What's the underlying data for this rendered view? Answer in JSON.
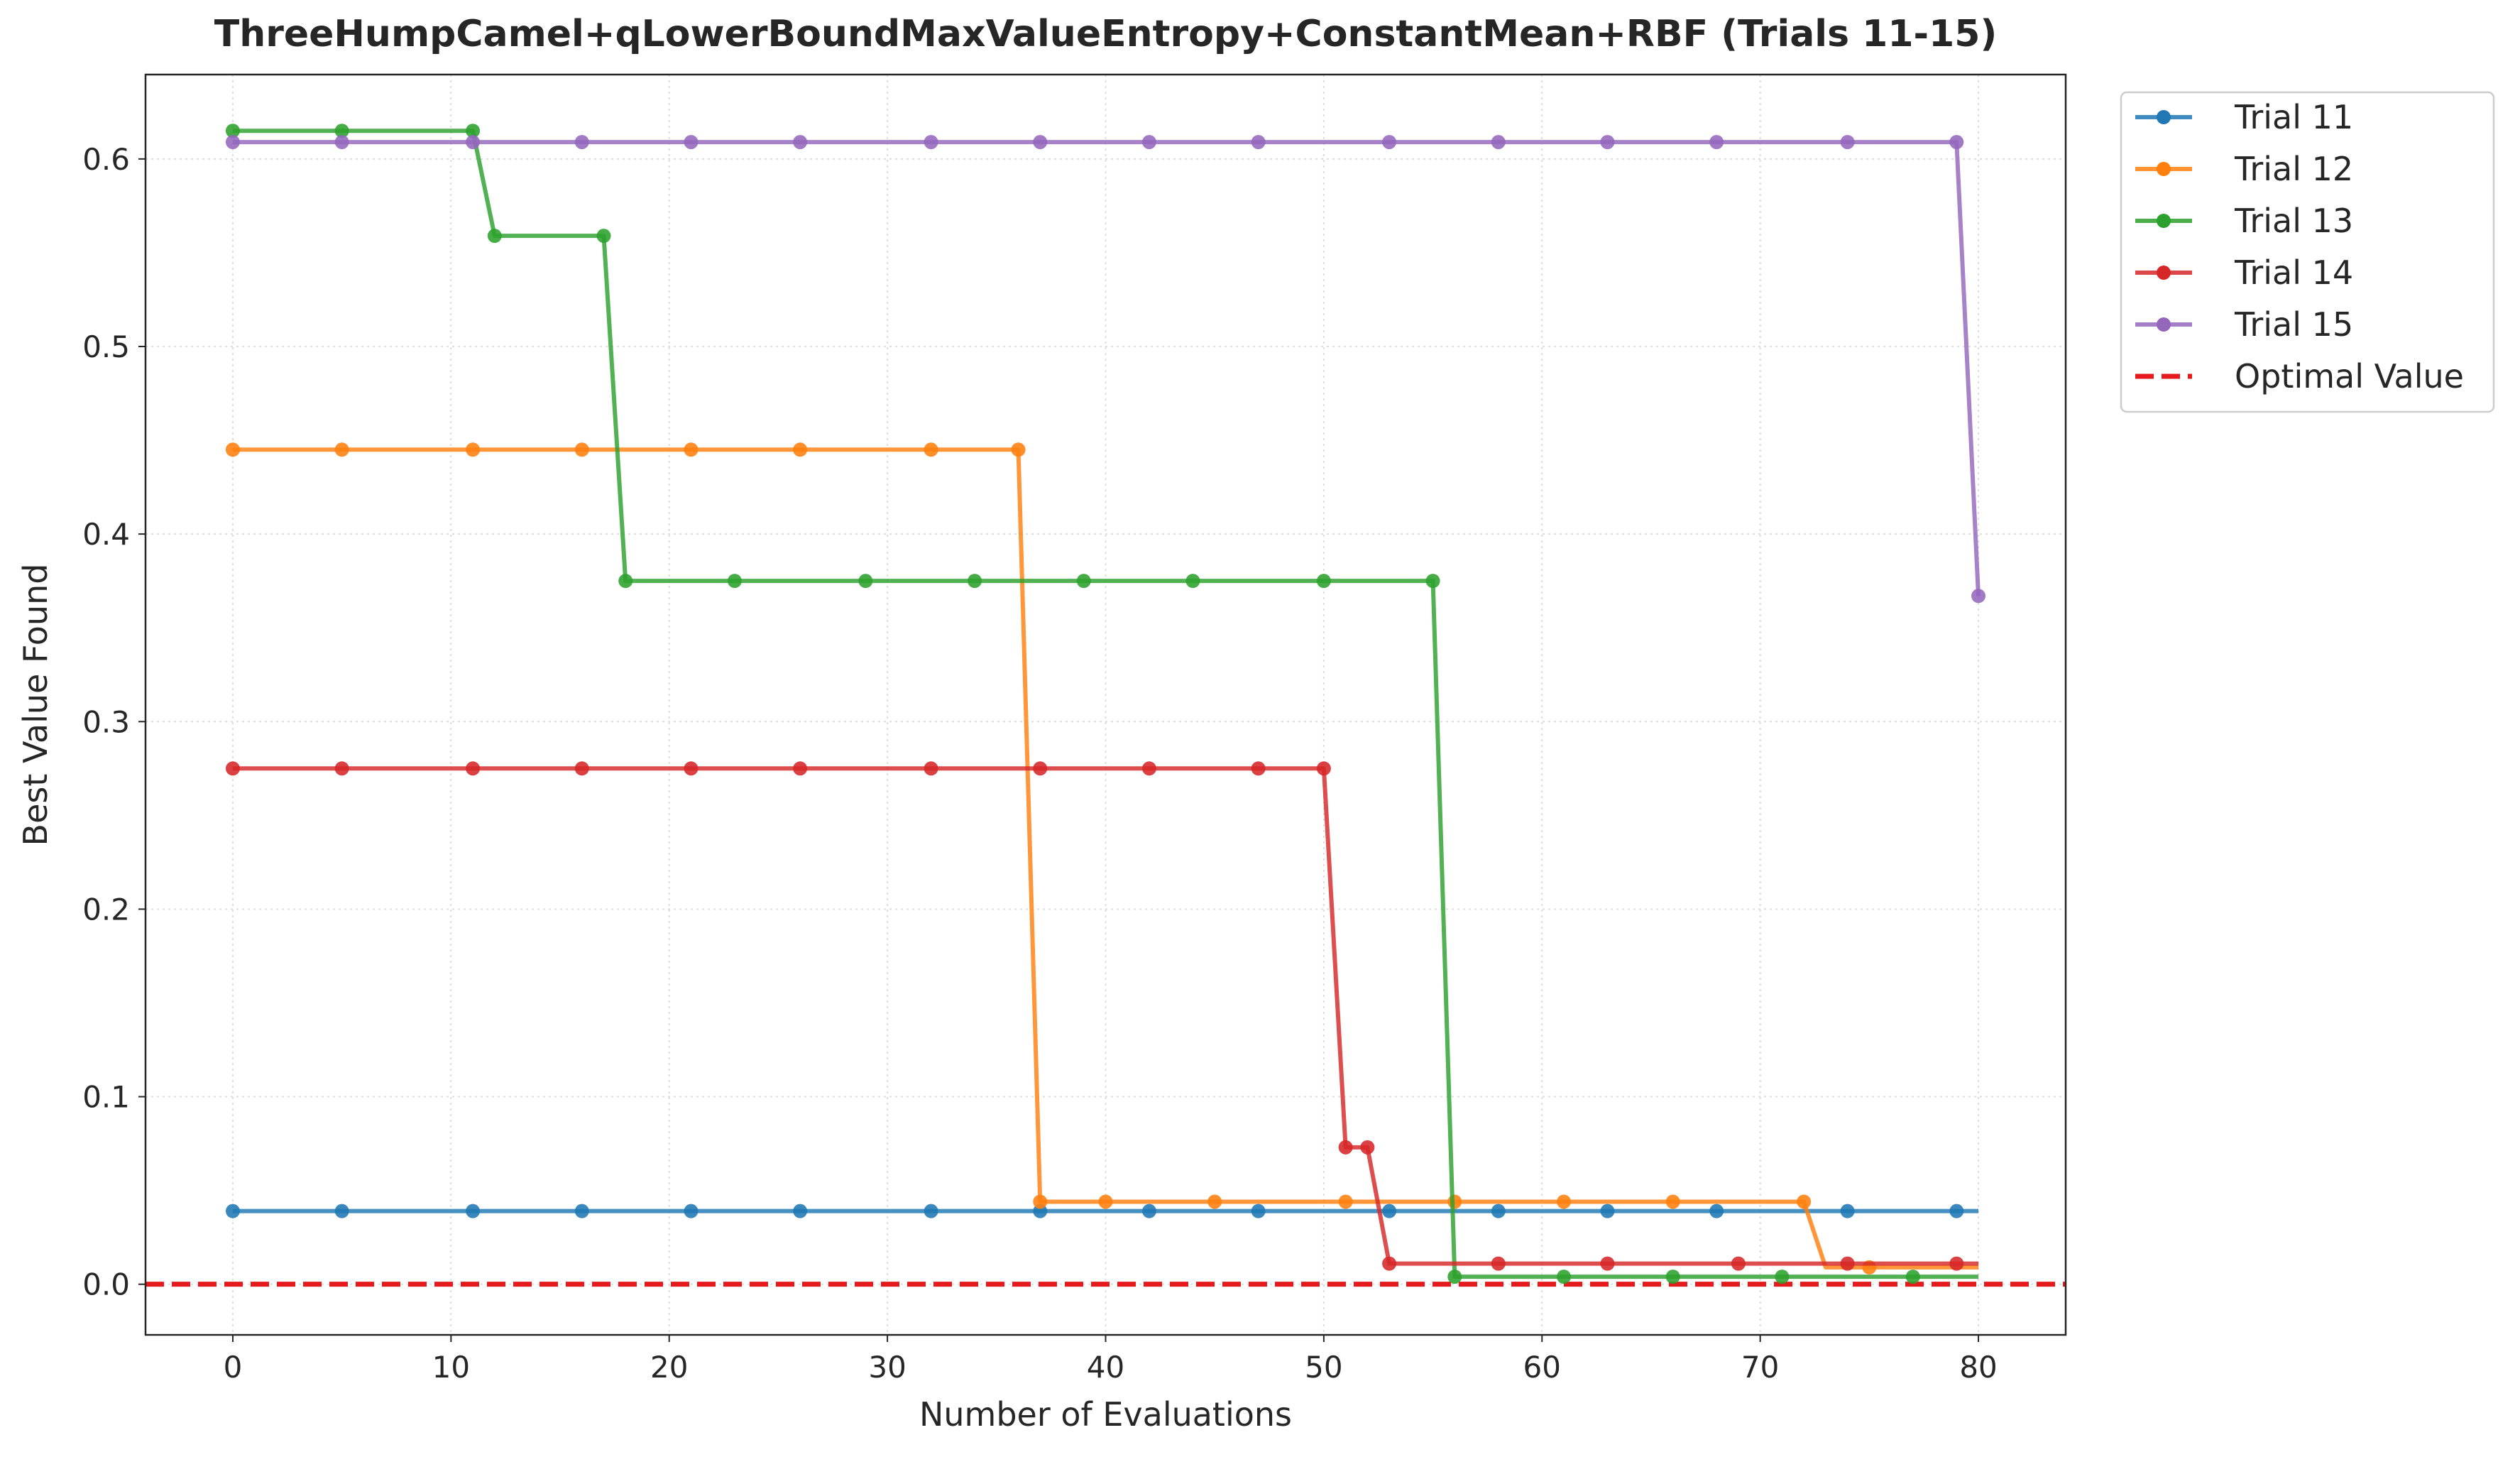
{
  "chart_data": {
    "type": "line",
    "title": "ThreeHumpCamel+qLowerBoundMaxValueEntropy+ConstantMean+RBF (Trials 11-15)",
    "xlabel": "Number of Evaluations",
    "ylabel": "Best Value Found",
    "xlim": [
      -4,
      84
    ],
    "ylim": [
      -0.027,
      0.645
    ],
    "xticks": [
      0,
      10,
      20,
      30,
      40,
      50,
      60,
      70,
      80
    ],
    "xtick_labels": [
      "0",
      "10",
      "20",
      "30",
      "40",
      "50",
      "60",
      "70",
      "80"
    ],
    "yticks": [
      0.0,
      0.1,
      0.2,
      0.3,
      0.4,
      0.5,
      0.6
    ],
    "ytick_labels": [
      "0.0",
      "0.1",
      "0.2",
      "0.3",
      "0.4",
      "0.5",
      "0.6"
    ],
    "grid": true,
    "legend_position": "outside-top-right",
    "series": [
      {
        "name": "Trial 11",
        "color": "#1f77b4",
        "x": [
          0,
          80
        ],
        "y": [
          0.039,
          0.039
        ],
        "markers_x": [
          0,
          5,
          11,
          16,
          21,
          26,
          32,
          37,
          42,
          47,
          53,
          58,
          63,
          68,
          74,
          79
        ]
      },
      {
        "name": "Trial 12",
        "color": "#ff7f0e",
        "x": [
          0,
          36,
          37,
          72,
          73,
          80
        ],
        "y": [
          0.445,
          0.445,
          0.044,
          0.044,
          0.009,
          0.009
        ],
        "markers_x": [
          0,
          5,
          11,
          16,
          21,
          26,
          32,
          36,
          37,
          40,
          45,
          51,
          56,
          61,
          66,
          72,
          75
        ]
      },
      {
        "name": "Trial 13",
        "color": "#2ca02c",
        "x": [
          0,
          11,
          12,
          17,
          18,
          55,
          56,
          80
        ],
        "y": [
          0.615,
          0.615,
          0.559,
          0.559,
          0.375,
          0.375,
          0.004,
          0.004
        ],
        "markers_x": [
          0,
          5,
          11,
          12,
          17,
          18,
          23,
          29,
          34,
          39,
          44,
          50,
          55,
          56,
          61,
          66,
          71,
          77
        ]
      },
      {
        "name": "Trial 14",
        "color": "#d62728",
        "x": [
          0,
          50,
          51,
          52,
          53,
          80
        ],
        "y": [
          0.275,
          0.275,
          0.073,
          0.073,
          0.011,
          0.011
        ],
        "markers_x": [
          0,
          5,
          11,
          16,
          21,
          26,
          32,
          37,
          42,
          47,
          50,
          51,
          52,
          53,
          58,
          63,
          69,
          74,
          79
        ]
      },
      {
        "name": "Trial 15",
        "color": "#9467bd",
        "x": [
          0,
          79,
          80
        ],
        "y": [
          0.609,
          0.609,
          0.367
        ],
        "markers_x": [
          0,
          5,
          11,
          16,
          21,
          26,
          32,
          37,
          42,
          47,
          53,
          58,
          63,
          68,
          74,
          79,
          80
        ]
      }
    ],
    "reference_lines": [
      {
        "name": "Optimal Value",
        "y": 0.0,
        "color": "#e41a1c",
        "style": "dashed"
      }
    ]
  }
}
